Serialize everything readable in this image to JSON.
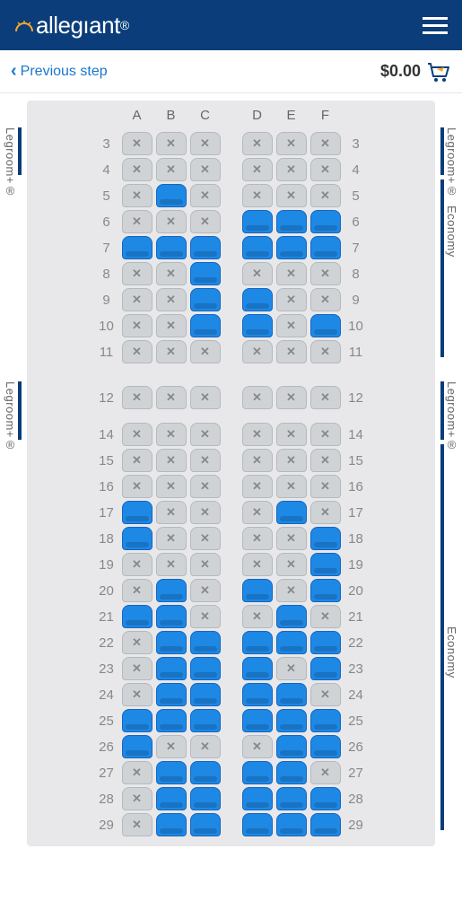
{
  "header": {
    "brand": "allegıant"
  },
  "subheader": {
    "back_label": "Previous step",
    "price": "$0.00"
  },
  "colors": {
    "header_bg": "#0a3d7a",
    "link": "#1976d2",
    "seat_avail": "#1e88e5",
    "seat_unavail": "#d0d3d6",
    "fuselage": "#e8e8ea"
  },
  "seatmap": {
    "columns": [
      "A",
      "B",
      "C",
      "D",
      "E",
      "F"
    ],
    "cabins": [
      {
        "name": "front",
        "left_labels": [
          {
            "text": "Legroom+®",
            "at_row": 3,
            "bar_rows": [
              3,
              4
            ]
          },
          {
            "note": "none"
          }
        ],
        "right_labels": [
          {
            "text": "Legroom+®",
            "at_row": 3,
            "bar_rows": [
              3,
              4
            ]
          },
          {
            "text": "Economy",
            "at_row": 6,
            "bar_rows": [
              5,
              11
            ]
          }
        ],
        "exits": [
          {
            "side": "left",
            "row": 3
          }
        ],
        "rows": [
          {
            "n": 3,
            "s": [
              "x",
              "x",
              "x",
              "x",
              "x",
              "x"
            ]
          },
          {
            "n": 4,
            "s": [
              "x",
              "x",
              "x",
              "x",
              "x",
              "x"
            ]
          },
          {
            "n": 5,
            "s": [
              "x",
              "a",
              "x",
              "x",
              "x",
              "x"
            ]
          },
          {
            "n": 6,
            "s": [
              "x",
              "x",
              "x",
              "a",
              "a",
              "a"
            ]
          },
          {
            "n": 7,
            "s": [
              "a",
              "a",
              "a",
              "a",
              "a",
              "a"
            ]
          },
          {
            "n": 8,
            "s": [
              "x",
              "x",
              "a",
              "x",
              "x",
              "x"
            ]
          },
          {
            "n": 9,
            "s": [
              "x",
              "x",
              "a",
              "a",
              "x",
              "x"
            ]
          },
          {
            "n": 10,
            "s": [
              "x",
              "x",
              "a",
              "a",
              "x",
              "a"
            ]
          },
          {
            "n": 11,
            "s": [
              "x",
              "x",
              "x",
              "x",
              "x",
              "x"
            ]
          }
        ]
      },
      {
        "name": "rear",
        "left_labels": [
          {
            "text": "Legroom+®",
            "at_row": 12,
            "bar_rows": [
              12,
              14
            ]
          }
        ],
        "right_labels": [
          {
            "text": "Legroom+®",
            "at_row": 12,
            "bar_rows": [
              12,
              14
            ]
          },
          {
            "text": "Economy",
            "at_row": 22,
            "bar_rows": [
              15,
              29
            ]
          }
        ],
        "exits": [
          {
            "side": "left",
            "row": 12
          },
          {
            "side": "right",
            "row": 12
          },
          {
            "side": "left",
            "row": 14
          },
          {
            "side": "right",
            "row": 14
          }
        ],
        "rows": [
          {
            "n": 12,
            "s": [
              "x",
              "x",
              "x",
              "x",
              "x",
              "x"
            ]
          },
          {
            "n": 14,
            "s": [
              "x",
              "x",
              "x",
              "x",
              "x",
              "x"
            ]
          },
          {
            "n": 15,
            "s": [
              "x",
              "x",
              "x",
              "x",
              "x",
              "x"
            ]
          },
          {
            "n": 16,
            "s": [
              "x",
              "x",
              "x",
              "x",
              "x",
              "x"
            ]
          },
          {
            "n": 17,
            "s": [
              "a",
              "x",
              "x",
              "x",
              "a",
              "x"
            ]
          },
          {
            "n": 18,
            "s": [
              "a",
              "x",
              "x",
              "x",
              "x",
              "a"
            ]
          },
          {
            "n": 19,
            "s": [
              "x",
              "x",
              "x",
              "x",
              "x",
              "a"
            ]
          },
          {
            "n": 20,
            "s": [
              "x",
              "a",
              "x",
              "a",
              "x",
              "a"
            ]
          },
          {
            "n": 21,
            "s": [
              "a",
              "a",
              "x",
              "x",
              "a",
              "x"
            ]
          },
          {
            "n": 22,
            "s": [
              "x",
              "a",
              "a",
              "a",
              "a",
              "a"
            ]
          },
          {
            "n": 23,
            "s": [
              "x",
              "a",
              "a",
              "a",
              "x",
              "a"
            ]
          },
          {
            "n": 24,
            "s": [
              "x",
              "a",
              "a",
              "a",
              "a",
              "x"
            ]
          },
          {
            "n": 25,
            "s": [
              "a",
              "a",
              "a",
              "a",
              "a",
              "a"
            ]
          },
          {
            "n": 26,
            "s": [
              "a",
              "x",
              "x",
              "x",
              "a",
              "a"
            ]
          },
          {
            "n": 27,
            "s": [
              "x",
              "a",
              "a",
              "a",
              "a",
              "x"
            ]
          },
          {
            "n": 28,
            "s": [
              "x",
              "a",
              "a",
              "a",
              "a",
              "a"
            ]
          },
          {
            "n": 29,
            "s": [
              "x",
              "a",
              "a",
              "a",
              "a",
              "a"
            ]
          }
        ]
      }
    ]
  }
}
